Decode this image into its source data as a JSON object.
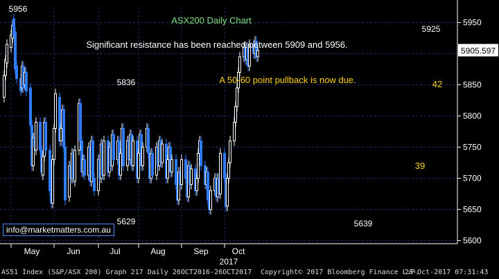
{
  "chart_data": {
    "type": "candlestick",
    "title": "ASX200 Daily Chart",
    "ylim": [
      5595,
      5975
    ],
    "y_ticks": [
      5600,
      5650,
      5700,
      5750,
      5800,
      5850,
      5900,
      5950
    ],
    "x_months": [
      "May",
      "Jun",
      "Jul",
      "Aug",
      "Sep",
      "Oct"
    ],
    "x_year": "2017",
    "last_price": "5905.597",
    "annotations": [
      {
        "text": "Significant resistance has been reached between 5909 and 5956.",
        "color": "#ffffff"
      },
      {
        "text": "A 50-60 point pullback is now due.",
        "color": "#ffd21a"
      }
    ],
    "level_labels": [
      "5956",
      "5836",
      "5629",
      "5639",
      "5925"
    ],
    "count_labels": [
      "42",
      "39"
    ],
    "series": [
      {
        "d": "2017-04-26",
        "o": 5830,
        "c": 5865
      },
      {
        "d": "2017-04-27",
        "o": 5865,
        "c": 5890
      },
      {
        "d": "2017-04-28",
        "o": 5885,
        "c": 5915
      },
      {
        "d": "2017-05-01",
        "o": 5910,
        "c": 5930
      },
      {
        "d": "2017-05-02",
        "o": 5925,
        "c": 5945
      },
      {
        "d": "2017-05-03",
        "o": 5956,
        "c": 5930
      },
      {
        "d": "2017-05-04",
        "o": 5935,
        "c": 5875
      },
      {
        "d": "2017-05-05",
        "o": 5880,
        "c": 5860
      },
      {
        "d": "2017-05-08",
        "o": 5860,
        "c": 5840
      },
      {
        "d": "2017-05-09",
        "o": 5845,
        "c": 5880
      },
      {
        "d": "2017-05-10",
        "o": 5880,
        "c": 5845
      },
      {
        "d": "2017-05-11",
        "o": 5850,
        "c": 5870
      },
      {
        "d": "2017-05-12",
        "o": 5870,
        "c": 5840
      },
      {
        "d": "2017-05-15",
        "o": 5845,
        "c": 5785
      },
      {
        "d": "2017-05-16",
        "o": 5785,
        "c": 5720
      },
      {
        "d": "2017-05-17",
        "o": 5720,
        "c": 5765
      },
      {
        "d": "2017-05-18",
        "o": 5765,
        "c": 5750
      },
      {
        "d": "2017-05-19",
        "o": 5745,
        "c": 5790
      },
      {
        "d": "2017-05-22",
        "o": 5790,
        "c": 5745
      },
      {
        "d": "2017-05-23",
        "o": 5745,
        "c": 5710
      },
      {
        "d": "2017-05-24",
        "o": 5705,
        "c": 5735
      },
      {
        "d": "2017-05-25",
        "o": 5735,
        "c": 5790
      },
      {
        "d": "2017-05-26",
        "o": 5790,
        "c": 5745
      },
      {
        "d": "2017-05-29",
        "o": 5745,
        "c": 5680
      },
      {
        "d": "2017-05-30",
        "o": 5680,
        "c": 5660
      },
      {
        "d": "2017-05-31",
        "o": 5660,
        "c": 5730
      },
      {
        "d": "2017-06-01",
        "o": 5730,
        "c": 5780
      },
      {
        "d": "2017-06-02",
        "o": 5780,
        "c": 5836
      },
      {
        "d": "2017-06-05",
        "o": 5830,
        "c": 5760
      },
      {
        "d": "2017-06-06",
        "o": 5760,
        "c": 5780
      },
      {
        "d": "2017-06-07",
        "o": 5780,
        "c": 5810
      },
      {
        "d": "2017-06-08",
        "o": 5810,
        "c": 5750
      },
      {
        "d": "2017-06-09",
        "o": 5750,
        "c": 5665
      },
      {
        "d": "2017-06-12",
        "o": 5670,
        "c": 5720
      },
      {
        "d": "2017-06-13",
        "o": 5720,
        "c": 5700
      },
      {
        "d": "2017-06-14",
        "o": 5700,
        "c": 5740
      },
      {
        "d": "2017-06-15",
        "o": 5740,
        "c": 5700
      },
      {
        "d": "2017-06-16",
        "o": 5695,
        "c": 5745
      },
      {
        "d": "2017-06-19",
        "o": 5745,
        "c": 5820
      },
      {
        "d": "2017-06-20",
        "o": 5820,
        "c": 5760
      },
      {
        "d": "2017-06-21",
        "o": 5760,
        "c": 5710
      },
      {
        "d": "2017-06-22",
        "o": 5710,
        "c": 5730
      },
      {
        "d": "2017-06-23",
        "o": 5730,
        "c": 5705
      },
      {
        "d": "2017-06-26",
        "o": 5705,
        "c": 5750
      },
      {
        "d": "2017-06-27",
        "o": 5750,
        "c": 5695
      },
      {
        "d": "2017-06-28",
        "o": 5695,
        "c": 5760
      },
      {
        "d": "2017-06-29",
        "o": 5760,
        "c": 5700
      },
      {
        "d": "2017-06-30",
        "o": 5700,
        "c": 5680
      },
      {
        "d": "2017-07-03",
        "o": 5680,
        "c": 5730
      },
      {
        "d": "2017-07-04",
        "o": 5730,
        "c": 5700
      },
      {
        "d": "2017-07-05",
        "o": 5700,
        "c": 5755
      },
      {
        "d": "2017-07-06",
        "o": 5755,
        "c": 5705
      },
      {
        "d": "2017-07-07",
        "o": 5705,
        "c": 5760
      },
      {
        "d": "2017-07-10",
        "o": 5760,
        "c": 5710
      },
      {
        "d": "2017-07-11",
        "o": 5710,
        "c": 5750
      },
      {
        "d": "2017-07-12",
        "o": 5750,
        "c": 5720
      },
      {
        "d": "2017-07-13",
        "o": 5720,
        "c": 5770
      },
      {
        "d": "2017-07-14",
        "o": 5770,
        "c": 5730
      },
      {
        "d": "2017-07-17",
        "o": 5730,
        "c": 5760
      },
      {
        "d": "2017-07-18",
        "o": 5760,
        "c": 5705
      },
      {
        "d": "2017-07-19",
        "o": 5705,
        "c": 5740
      },
      {
        "d": "2017-07-20",
        "o": 5740,
        "c": 5780
      },
      {
        "d": "2017-07-21",
        "o": 5780,
        "c": 5720
      },
      {
        "d": "2017-07-24",
        "o": 5720,
        "c": 5760
      },
      {
        "d": "2017-07-25",
        "o": 5760,
        "c": 5730
      },
      {
        "d": "2017-07-26",
        "o": 5730,
        "c": 5770
      },
      {
        "d": "2017-07-27",
        "o": 5770,
        "c": 5720
      },
      {
        "d": "2017-07-28",
        "o": 5720,
        "c": 5760
      },
      {
        "d": "2017-07-31",
        "o": 5760,
        "c": 5700
      },
      {
        "d": "2017-08-01",
        "o": 5700,
        "c": 5740
      },
      {
        "d": "2017-08-02",
        "o": 5740,
        "c": 5770
      },
      {
        "d": "2017-08-03",
        "o": 5770,
        "c": 5720
      },
      {
        "d": "2017-08-04",
        "o": 5720,
        "c": 5750
      },
      {
        "d": "2017-08-07",
        "o": 5750,
        "c": 5780
      },
      {
        "d": "2017-08-08",
        "o": 5780,
        "c": 5740
      },
      {
        "d": "2017-08-09",
        "o": 5740,
        "c": 5700
      },
      {
        "d": "2017-08-10",
        "o": 5700,
        "c": 5740
      },
      {
        "d": "2017-08-11",
        "o": 5740,
        "c": 5705
      },
      {
        "d": "2017-08-14",
        "o": 5705,
        "c": 5750
      },
      {
        "d": "2017-08-15",
        "o": 5750,
        "c": 5720
      },
      {
        "d": "2017-08-16",
        "o": 5720,
        "c": 5760
      },
      {
        "d": "2017-08-17",
        "o": 5760,
        "c": 5725
      },
      {
        "d": "2017-08-18",
        "o": 5725,
        "c": 5755
      },
      {
        "d": "2017-08-21",
        "o": 5755,
        "c": 5700
      },
      {
        "d": "2017-08-22",
        "o": 5700,
        "c": 5730
      },
      {
        "d": "2017-08-23",
        "o": 5730,
        "c": 5750
      },
      {
        "d": "2017-08-24",
        "o": 5750,
        "c": 5710
      },
      {
        "d": "2017-08-25",
        "o": 5710,
        "c": 5730
      },
      {
        "d": "2017-08-28",
        "o": 5730,
        "c": 5690
      },
      {
        "d": "2017-08-29",
        "o": 5690,
        "c": 5665
      },
      {
        "d": "2017-08-30",
        "o": 5665,
        "c": 5710
      },
      {
        "d": "2017-08-31",
        "o": 5710,
        "c": 5690
      },
      {
        "d": "2017-09-01",
        "o": 5690,
        "c": 5730
      },
      {
        "d": "2017-09-04",
        "o": 5730,
        "c": 5700
      },
      {
        "d": "2017-09-05",
        "o": 5700,
        "c": 5670
      },
      {
        "d": "2017-09-06",
        "o": 5670,
        "c": 5720
      },
      {
        "d": "2017-09-07",
        "o": 5720,
        "c": 5690
      },
      {
        "d": "2017-09-08",
        "o": 5690,
        "c": 5715
      },
      {
        "d": "2017-09-11",
        "o": 5715,
        "c": 5680
      },
      {
        "d": "2017-09-12",
        "o": 5680,
        "c": 5700
      },
      {
        "d": "2017-09-13",
        "o": 5700,
        "c": 5740
      },
      {
        "d": "2017-09-14",
        "o": 5740,
        "c": 5760
      },
      {
        "d": "2017-09-15",
        "o": 5760,
        "c": 5720
      },
      {
        "d": "2017-09-18",
        "o": 5720,
        "c": 5690
      },
      {
        "d": "2017-09-19",
        "o": 5690,
        "c": 5710
      },
      {
        "d": "2017-09-20",
        "o": 5710,
        "c": 5665
      },
      {
        "d": "2017-09-21",
        "o": 5665,
        "c": 5650
      },
      {
        "d": "2017-09-22",
        "o": 5650,
        "c": 5680
      },
      {
        "d": "2017-09-25",
        "o": 5680,
        "c": 5700
      },
      {
        "d": "2017-09-26",
        "o": 5700,
        "c": 5670
      },
      {
        "d": "2017-09-27",
        "o": 5670,
        "c": 5700
      },
      {
        "d": "2017-09-28",
        "o": 5700,
        "c": 5675
      },
      {
        "d": "2017-09-29",
        "o": 5675,
        "c": 5740
      },
      {
        "d": "2017-10-02",
        "o": 5740,
        "c": 5700
      },
      {
        "d": "2017-10-03",
        "o": 5700,
        "c": 5655
      },
      {
        "d": "2017-10-04",
        "o": 5655,
        "c": 5700
      },
      {
        "d": "2017-10-05",
        "o": 5700,
        "c": 5725
      },
      {
        "d": "2017-10-06",
        "o": 5725,
        "c": 5760
      },
      {
        "d": "2017-10-09",
        "o": 5760,
        "c": 5790
      },
      {
        "d": "2017-10-10",
        "o": 5790,
        "c": 5815
      },
      {
        "d": "2017-10-11",
        "o": 5815,
        "c": 5845
      },
      {
        "d": "2017-10-12",
        "o": 5845,
        "c": 5870
      },
      {
        "d": "2017-10-13",
        "o": 5870,
        "c": 5895
      },
      {
        "d": "2017-10-16",
        "o": 5895,
        "c": 5910
      },
      {
        "d": "2017-10-17",
        "o": 5910,
        "c": 5890
      },
      {
        "d": "2017-10-18",
        "o": 5890,
        "c": 5910
      },
      {
        "d": "2017-10-19",
        "o": 5910,
        "c": 5880
      },
      {
        "d": "2017-10-20",
        "o": 5880,
        "c": 5915
      },
      {
        "d": "2017-10-23",
        "o": 5915,
        "c": 5900
      },
      {
        "d": "2017-10-24",
        "o": 5900,
        "c": 5920
      },
      {
        "d": "2017-10-25",
        "o": 5920,
        "c": 5895
      },
      {
        "d": "2017-10-26",
        "o": 5895,
        "c": 5905
      }
    ]
  },
  "colors": {
    "up": "#ffffff",
    "down": "#2f7cff",
    "grid": "#1a2c66",
    "axis": "#ffffff",
    "title": "#7fe07f",
    "yellow": "#ffd21a"
  },
  "email": "info@marketmatters.com.au",
  "footer": {
    "left": "AS51 Index (S&P/ASX 200) Graph 217  Daily 26OCT2016-26OCT2017",
    "mid": "Copyright© 2017 Bloomberg Finance L.P.",
    "right": "26-Oct-2017 07:31:43"
  }
}
